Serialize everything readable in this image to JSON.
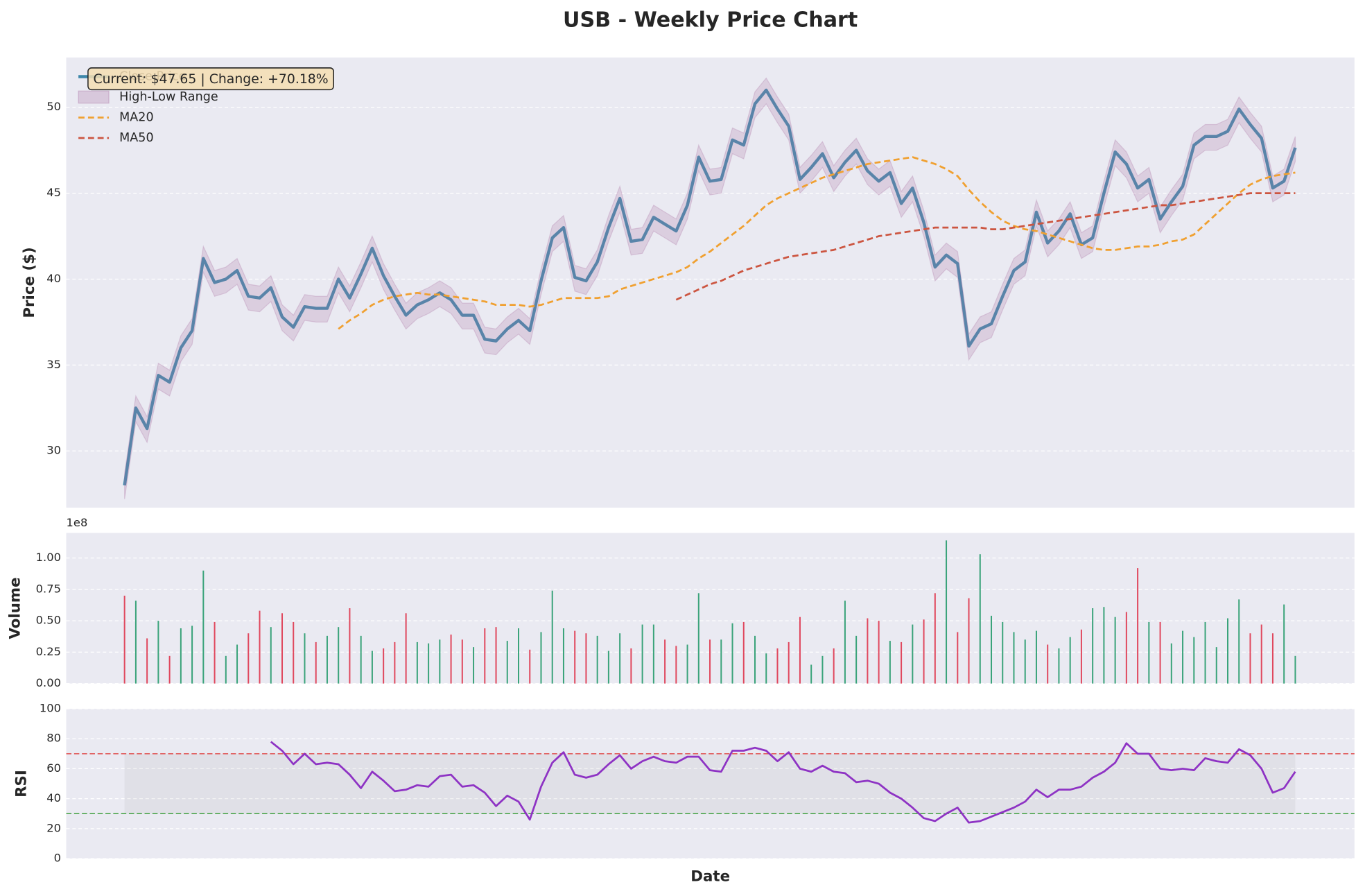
{
  "chart_data": [
    {
      "type": "line",
      "title": "USB - Weekly Price Chart",
      "y_label": "Price ($)",
      "annotation": "Current: $47.65 | Change: +70.18%",
      "ylim": [
        26.7,
        52.9
      ],
      "yticks": [
        30,
        35,
        40,
        45,
        50
      ],
      "grid": true,
      "legend": "upper left",
      "series": [
        {
          "name": "Close Price",
          "color": "#3d87aa",
          "values": [
            28.0,
            32.5,
            31.3,
            34.4,
            34.0,
            36.0,
            37.0,
            41.2,
            39.8,
            40.0,
            40.5,
            39.0,
            38.9,
            39.5,
            37.8,
            37.2,
            38.4,
            38.3,
            38.3,
            40.0,
            38.9,
            40.3,
            41.8,
            40.2,
            39.0,
            37.9,
            38.5,
            38.8,
            39.2,
            38.8,
            37.9,
            37.9,
            36.5,
            36.4,
            37.1,
            37.6,
            37.0,
            39.9,
            42.4,
            43.0,
            40.1,
            39.9,
            41.0,
            43.0,
            44.7,
            42.2,
            42.3,
            43.6,
            43.2,
            42.8,
            44.3,
            47.1,
            45.7,
            45.8,
            48.1,
            47.8,
            50.2,
            51.0,
            49.9,
            48.9,
            45.8,
            46.5,
            47.3,
            45.9,
            46.8,
            47.5,
            46.3,
            45.7,
            46.2,
            44.4,
            45.3,
            43.3,
            40.7,
            41.4,
            40.9,
            36.1,
            37.1,
            37.4,
            39.0,
            40.5,
            41.0,
            43.9,
            42.1,
            42.8,
            43.8,
            42.0,
            42.4,
            45.0,
            47.4,
            46.7,
            45.3,
            45.8,
            43.5,
            44.5,
            45.4,
            47.8,
            48.3,
            48.3,
            48.6,
            49.9,
            49.0,
            48.2,
            45.3,
            45.7,
            47.65
          ]
        },
        {
          "name": "High-Low Range",
          "color": "#b07aa8",
          "high": [
            28.7,
            33.2,
            32.0,
            35.1,
            34.7,
            36.7,
            37.7,
            41.9,
            40.5,
            40.7,
            41.2,
            39.7,
            39.6,
            40.2,
            38.5,
            37.9,
            39.1,
            39.0,
            39.0,
            40.7,
            39.6,
            41.0,
            42.5,
            40.9,
            39.7,
            38.6,
            39.2,
            39.5,
            39.9,
            39.5,
            38.6,
            38.6,
            37.2,
            37.1,
            37.8,
            38.3,
            37.7,
            40.6,
            43.1,
            43.7,
            40.8,
            40.6,
            41.7,
            43.7,
            45.4,
            42.9,
            43.0,
            44.3,
            43.9,
            43.5,
            45.0,
            47.8,
            46.4,
            46.5,
            48.8,
            48.5,
            50.9,
            51.7,
            50.6,
            49.6,
            46.5,
            47.2,
            48.0,
            46.6,
            47.5,
            48.2,
            47.0,
            46.4,
            46.9,
            45.1,
            46.0,
            44.0,
            41.4,
            42.1,
            41.6,
            36.8,
            37.8,
            38.1,
            39.7,
            41.2,
            41.7,
            44.6,
            42.8,
            43.5,
            44.5,
            42.7,
            43.1,
            45.7,
            48.1,
            47.4,
            46.0,
            46.5,
            44.2,
            45.2,
            46.1,
            48.5,
            49.0,
            49.0,
            49.3,
            50.6,
            49.7,
            48.9,
            46.0,
            46.4,
            48.3
          ],
          "low": [
            27.2,
            31.7,
            30.5,
            33.6,
            33.2,
            35.2,
            36.2,
            40.4,
            39.0,
            39.2,
            39.7,
            38.2,
            38.1,
            38.7,
            37.0,
            36.4,
            37.6,
            37.5,
            37.5,
            39.2,
            38.1,
            39.5,
            41.0,
            39.4,
            38.2,
            37.1,
            37.7,
            38.0,
            38.4,
            38.0,
            37.1,
            37.1,
            35.7,
            35.6,
            36.3,
            36.8,
            36.2,
            39.1,
            41.6,
            42.2,
            39.3,
            39.1,
            40.2,
            42.2,
            43.9,
            41.4,
            41.5,
            42.8,
            42.4,
            42.0,
            43.5,
            46.3,
            44.9,
            45.0,
            47.3,
            47.0,
            49.4,
            50.2,
            49.1,
            48.1,
            45.0,
            45.7,
            46.5,
            45.1,
            46.0,
            46.7,
            45.5,
            44.9,
            45.4,
            43.6,
            44.5,
            42.5,
            39.9,
            40.6,
            40.1,
            35.3,
            36.3,
            36.6,
            38.2,
            39.7,
            40.2,
            43.1,
            41.3,
            42.0,
            43.0,
            41.2,
            41.6,
            44.2,
            46.6,
            45.9,
            44.5,
            45.0,
            42.7,
            43.7,
            44.6,
            47.0,
            47.5,
            47.5,
            47.8,
            49.1,
            48.2,
            47.4,
            44.5,
            44.9,
            46.85
          ]
        },
        {
          "name": "MA20",
          "color": "#f0a030",
          "dashed": true,
          "values": [
            null,
            null,
            null,
            null,
            null,
            null,
            null,
            null,
            null,
            null,
            null,
            null,
            null,
            null,
            null,
            null,
            null,
            null,
            null,
            37.1,
            37.6,
            38.0,
            38.5,
            38.8,
            39.0,
            39.1,
            39.2,
            39.1,
            39.1,
            39.0,
            38.9,
            38.8,
            38.7,
            38.5,
            38.5,
            38.5,
            38.4,
            38.5,
            38.7,
            38.9,
            38.9,
            38.9,
            38.9,
            39.0,
            39.4,
            39.6,
            39.8,
            40.0,
            40.2,
            40.4,
            40.7,
            41.2,
            41.6,
            42.1,
            42.6,
            43.1,
            43.7,
            44.3,
            44.7,
            45.0,
            45.3,
            45.6,
            45.9,
            46.1,
            46.3,
            46.5,
            46.7,
            46.8,
            46.9,
            47.0,
            47.1,
            46.9,
            46.7,
            46.4,
            46.0,
            45.2,
            44.5,
            43.9,
            43.4,
            43.1,
            42.9,
            42.8,
            42.6,
            42.4,
            42.2,
            42.0,
            41.8,
            41.7,
            41.7,
            41.8,
            41.9,
            41.9,
            42.0,
            42.2,
            42.3,
            42.6,
            43.2,
            43.8,
            44.4,
            45.0,
            45.5,
            45.8,
            46.0,
            46.1,
            46.2
          ]
        },
        {
          "name": "MA50",
          "color": "#cc5540",
          "dashed": true,
          "values": [
            null,
            null,
            null,
            null,
            null,
            null,
            null,
            null,
            null,
            null,
            null,
            null,
            null,
            null,
            null,
            null,
            null,
            null,
            null,
            null,
            null,
            null,
            null,
            null,
            null,
            null,
            null,
            null,
            null,
            null,
            null,
            null,
            null,
            null,
            null,
            null,
            null,
            null,
            null,
            null,
            null,
            null,
            null,
            null,
            null,
            null,
            null,
            null,
            null,
            38.8,
            39.1,
            39.4,
            39.7,
            39.9,
            40.2,
            40.5,
            40.7,
            40.9,
            41.1,
            41.3,
            41.4,
            41.5,
            41.6,
            41.7,
            41.9,
            42.1,
            42.3,
            42.5,
            42.6,
            42.7,
            42.8,
            42.9,
            43.0,
            43.0,
            43.0,
            43.0,
            43.0,
            42.9,
            42.9,
            43.0,
            43.1,
            43.2,
            43.3,
            43.4,
            43.5,
            43.6,
            43.7,
            43.8,
            43.9,
            44.0,
            44.1,
            44.2,
            44.3,
            44.3,
            44.4,
            44.5,
            44.6,
            44.7,
            44.8,
            44.9,
            45.0,
            45.0,
            45.0,
            45.0,
            45.0
          ]
        }
      ]
    },
    {
      "type": "bar",
      "y_label": "Volume",
      "offset_label": "1e8",
      "up_color": "#3aa37a",
      "down_color": "#e0485e",
      "ylim": [
        0,
        1.2
      ],
      "grid": true,
      "yticks": [
        {
          "value": 0,
          "label": "0.00"
        },
        {
          "value": 0.25,
          "label": "0.25"
        },
        {
          "value": 0.5,
          "label": "0.50"
        },
        {
          "value": 0.75,
          "label": "0.75"
        },
        {
          "value": 1,
          "label": "1.00"
        }
      ],
      "values": [
        0.7,
        0.66,
        0.36,
        0.5,
        0.22,
        0.44,
        0.46,
        0.9,
        0.49,
        0.22,
        0.31,
        0.4,
        0.58,
        0.45,
        0.56,
        0.49,
        0.4,
        0.33,
        0.38,
        0.45,
        0.6,
        0.38,
        0.26,
        0.28,
        0.33,
        0.56,
        0.33,
        0.32,
        0.35,
        0.39,
        0.35,
        0.29,
        0.44,
        0.45,
        0.34,
        0.44,
        0.27,
        0.41,
        0.74,
        0.44,
        0.42,
        0.4,
        0.38,
        0.26,
        0.4,
        0.28,
        0.47,
        0.47,
        0.35,
        0.3,
        0.31,
        0.72,
        0.35,
        0.35,
        0.48,
        0.49,
        0.38,
        0.24,
        0.28,
        0.33,
        0.53,
        0.15,
        0.22,
        0.28,
        0.66,
        0.38,
        0.52,
        0.5,
        0.34,
        0.33,
        0.47,
        0.51,
        0.72,
        1.14,
        0.41,
        0.68,
        1.03,
        0.54,
        0.49,
        0.41,
        0.35,
        0.42,
        0.31,
        0.28,
        0.37,
        0.43,
        0.6,
        0.61,
        0.53,
        0.57,
        0.92,
        0.49,
        0.49,
        0.32,
        0.42,
        0.37,
        0.49,
        0.29,
        0.52,
        0.67,
        0.4,
        0.47,
        0.4,
        0.63,
        0.22
      ]
    },
    {
      "type": "line",
      "y_label": "RSI",
      "x_label": "Date",
      "ylim": [
        0,
        100
      ],
      "yticks": [
        0,
        20,
        40,
        60,
        80,
        100
      ],
      "grid": true,
      "overbought": 70,
      "oversold": 30,
      "overbought_color": "#e05050",
      "oversold_color": "#40a040",
      "series": [
        {
          "color": "#8e33c4",
          "values": [
            null,
            null,
            null,
            null,
            null,
            null,
            null,
            null,
            null,
            null,
            null,
            null,
            null,
            78,
            72,
            63,
            70,
            63,
            64,
            63,
            56,
            47,
            58,
            52,
            45,
            46,
            49,
            48,
            55,
            56,
            48,
            49,
            44,
            35,
            42,
            38,
            26,
            48,
            64,
            71,
            56,
            54,
            56,
            63,
            69,
            60,
            65,
            68,
            65,
            64,
            68,
            68,
            59,
            58,
            72,
            72,
            74,
            72,
            65,
            71,
            60,
            58,
            62,
            58,
            57,
            51,
            52,
            50,
            44,
            40,
            34,
            27,
            25,
            30,
            34,
            24,
            25,
            28,
            31,
            34,
            38,
            46,
            41,
            46,
            46,
            48,
            54,
            58,
            64,
            77,
            70,
            70,
            60,
            59,
            60,
            59,
            67,
            65,
            64,
            73,
            69,
            60,
            44,
            47,
            58
          ]
        }
      ]
    }
  ]
}
